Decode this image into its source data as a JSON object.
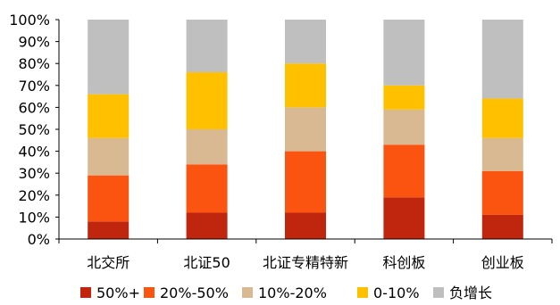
{
  "chart_data": {
    "type": "bar",
    "stacked": true,
    "normalized": true,
    "categories": [
      "北交所",
      "北证50",
      "北证专精特新",
      "科创板",
      "创业板"
    ],
    "series": [
      {
        "name": "50%+",
        "color": "#C0260E",
        "values": [
          8,
          12,
          12,
          19,
          11
        ]
      },
      {
        "name": "20%-50%",
        "color": "#FA5410",
        "values": [
          21,
          22,
          28,
          24,
          20
        ]
      },
      {
        "name": "10%-20%",
        "color": "#D9B991",
        "values": [
          17,
          16,
          20,
          16,
          15
        ]
      },
      {
        "name": "0-10%",
        "color": "#FFC000",
        "values": [
          20,
          26,
          20,
          11,
          18
        ]
      },
      {
        "name": "负增长",
        "color": "#BFBFBF",
        "values": [
          34,
          24,
          20,
          30,
          36
        ]
      }
    ],
    "y_ticks": [
      "0%",
      "10%",
      "20%",
      "30%",
      "40%",
      "50%",
      "60%",
      "70%",
      "80%",
      "90%",
      "100%"
    ],
    "ylim": [
      0,
      100
    ],
    "grid": false,
    "legend_position": "bottom"
  }
}
